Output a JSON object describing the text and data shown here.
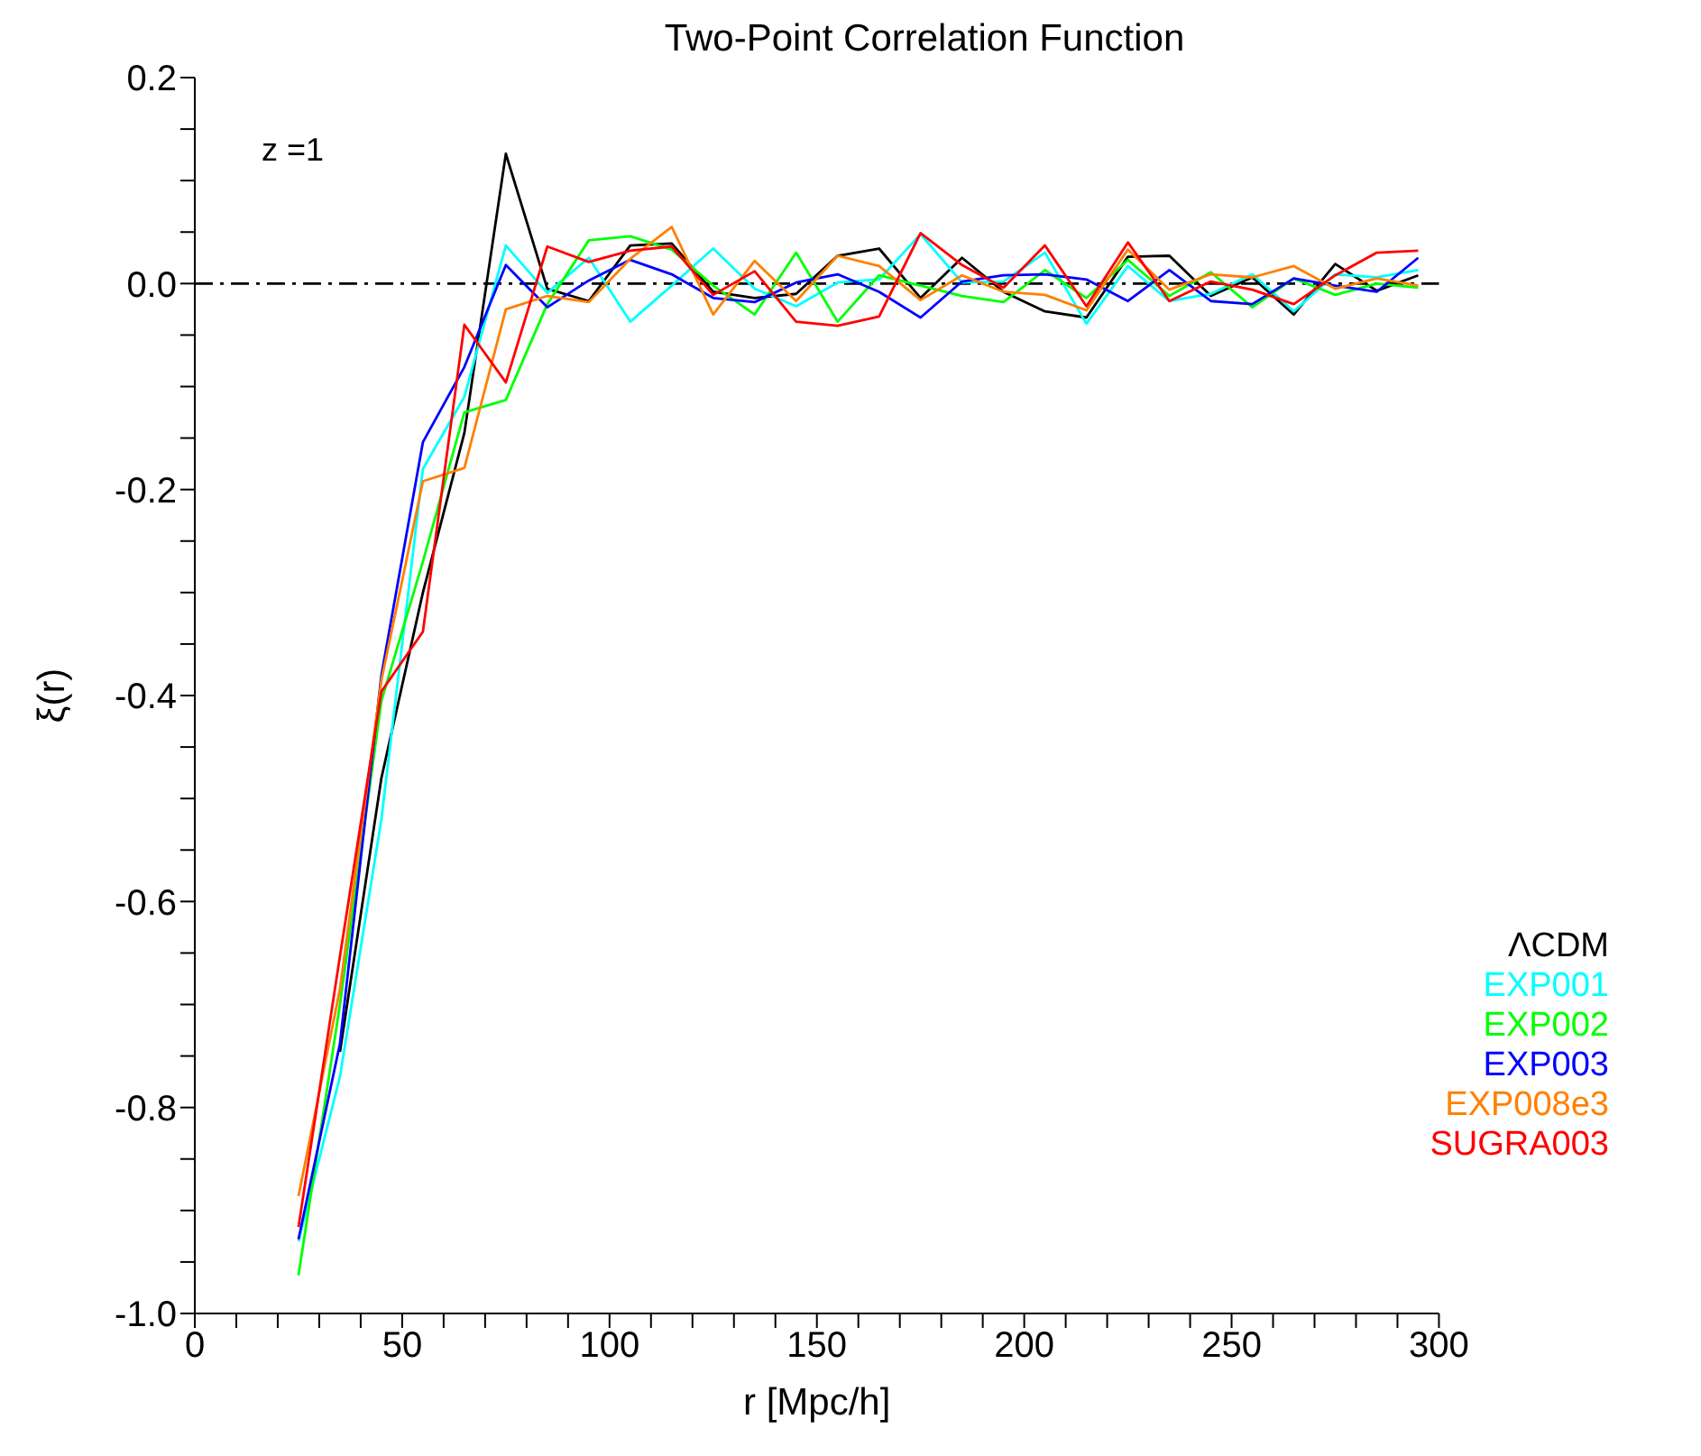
{
  "chart_data": {
    "type": "line",
    "title": "Two-Point Correlation Function",
    "xlabel": "r  [Mpc/h]",
    "ylabel": "ξ(r)",
    "annotations": [
      "z =1"
    ],
    "x": [
      25,
      35,
      45,
      55,
      65,
      75,
      85,
      95,
      105,
      115,
      125,
      135,
      145,
      155,
      165,
      175,
      185,
      195,
      205,
      215,
      225,
      235,
      245,
      255,
      265,
      275,
      285,
      295
    ],
    "xlim": [
      0,
      300
    ],
    "xticks": [
      0,
      {
        "value": 10,
        "label": null
      },
      {
        "value": 20,
        "label": null
      },
      {
        "value": 30,
        "label": null
      },
      {
        "value": 40,
        "label": null
      },
      50,
      {
        "value": 60,
        "label": null
      },
      {
        "value": 70,
        "label": null
      },
      {
        "value": 80,
        "label": null
      },
      {
        "value": 90,
        "label": null
      },
      100,
      {
        "value": 110,
        "label": null
      },
      {
        "value": 120,
        "label": null
      },
      {
        "value": 130,
        "label": null
      },
      {
        "value": 140,
        "label": null
      },
      150,
      {
        "value": 160,
        "label": null
      },
      {
        "value": 170,
        "label": null
      },
      {
        "value": 180,
        "label": null
      },
      {
        "value": 190,
        "label": null
      },
      200,
      {
        "value": 210,
        "label": null
      },
      {
        "value": 220,
        "label": null
      },
      {
        "value": 230,
        "label": null
      },
      {
        "value": 240,
        "label": null
      },
      250,
      {
        "value": 260,
        "label": null
      },
      {
        "value": 270,
        "label": null
      },
      {
        "value": 280,
        "label": null
      },
      {
        "value": 290,
        "label": null
      },
      300
    ],
    "ylim": [
      -1.0,
      0.2
    ],
    "yticks": [
      {
        "value": -1.0,
        "label": "-1.0"
      },
      {
        "value": -0.95,
        "label": null
      },
      {
        "value": -0.9,
        "label": null
      },
      {
        "value": -0.85,
        "label": null
      },
      -0.8,
      {
        "value": -0.75,
        "label": null
      },
      {
        "value": -0.7,
        "label": null
      },
      {
        "value": -0.65,
        "label": null
      },
      -0.6,
      {
        "value": -0.55,
        "label": null
      },
      {
        "value": -0.5,
        "label": null
      },
      {
        "value": -0.45,
        "label": null
      },
      -0.4,
      {
        "value": -0.35,
        "label": null
      },
      {
        "value": -0.3,
        "label": null
      },
      {
        "value": -0.25,
        "label": null
      },
      -0.2,
      {
        "value": -0.15,
        "label": null
      },
      {
        "value": -0.1,
        "label": null
      },
      {
        "value": -0.05,
        "label": null
      },
      {
        "value": 0,
        "label": "0.0"
      },
      {
        "value": 0.05,
        "label": null
      },
      {
        "value": 0.1,
        "label": null
      },
      {
        "value": 0.15,
        "label": null
      },
      0.2
    ],
    "grid": false,
    "legend": "bottom right",
    "marker": "none",
    "line_style": "solid",
    "ref_lines": [
      {
        "axis": "y",
        "value": 0,
        "color": "#000000",
        "line_style": "dashdot"
      }
    ],
    "series": [
      {
        "name": "ΛCDM",
        "color": "#000000",
        "values": [
          null,
          -0.746,
          -0.48,
          -0.3,
          -0.145,
          0.126,
          -0.005,
          -0.017,
          0.037,
          0.039,
          -0.008,
          -0.014,
          -0.01,
          0.027,
          0.034,
          -0.014,
          0.025,
          -0.008,
          -0.027,
          -0.033,
          0.026,
          0.027,
          -0.012,
          0.006,
          -0.03,
          0.019,
          -0.007,
          0.008
        ]
      },
      {
        "name": "EXP001",
        "color": "#00ffff",
        "values": [
          -0.93,
          -0.77,
          -0.52,
          -0.18,
          -0.11,
          0.037,
          -0.009,
          0.025,
          -0.037,
          -0.002,
          0.034,
          -0.005,
          -0.022,
          0.001,
          0.004,
          0.048,
          0.001,
          0.002,
          0.03,
          -0.039,
          0.017,
          -0.017,
          -0.01,
          0.009,
          -0.027,
          0.009,
          0.006,
          0.013
        ]
      },
      {
        "name": "EXP002",
        "color": "#00ff00",
        "values": [
          -0.963,
          -0.7,
          -0.405,
          -0.27,
          -0.125,
          -0.113,
          -0.02,
          0.042,
          0.046,
          0.033,
          -0.002,
          -0.03,
          0.03,
          -0.037,
          0.008,
          -0.002,
          -0.012,
          -0.018,
          0.013,
          -0.014,
          0.023,
          -0.012,
          0.011,
          -0.023,
          0.005,
          -0.011,
          0.0,
          -0.004
        ]
      },
      {
        "name": "EXP003",
        "color": "#0000ff",
        "values": [
          -0.928,
          -0.738,
          -0.38,
          -0.154,
          -0.081,
          0.018,
          -0.023,
          0.003,
          0.023,
          0.009,
          -0.014,
          -0.018,
          0.001,
          0.009,
          -0.008,
          -0.033,
          0.002,
          0.008,
          0.009,
          0.004,
          -0.017,
          0.013,
          -0.017,
          -0.02,
          0.005,
          -0.002,
          -0.008,
          0.025
        ]
      },
      {
        "name": "EXP008e3",
        "color": "#ff8000",
        "values": [
          -0.886,
          -0.685,
          -0.385,
          -0.192,
          -0.179,
          -0.025,
          -0.012,
          -0.018,
          0.024,
          0.055,
          -0.03,
          0.022,
          -0.017,
          0.027,
          0.017,
          -0.016,
          0.008,
          -0.008,
          -0.011,
          -0.026,
          0.033,
          -0.006,
          0.009,
          0.006,
          0.017,
          -0.005,
          0.005,
          -0.002
        ]
      },
      {
        "name": "SUGRA003",
        "color": "#ff0000",
        "values": [
          -0.916,
          -0.653,
          -0.396,
          -0.338,
          -0.04,
          -0.096,
          0.036,
          0.021,
          0.032,
          0.036,
          -0.011,
          0.012,
          -0.037,
          -0.041,
          -0.032,
          0.049,
          0.018,
          -0.004,
          0.037,
          -0.022,
          0.04,
          -0.017,
          0.002,
          -0.006,
          -0.02,
          0.008,
          0.03,
          0.032
        ]
      }
    ]
  }
}
